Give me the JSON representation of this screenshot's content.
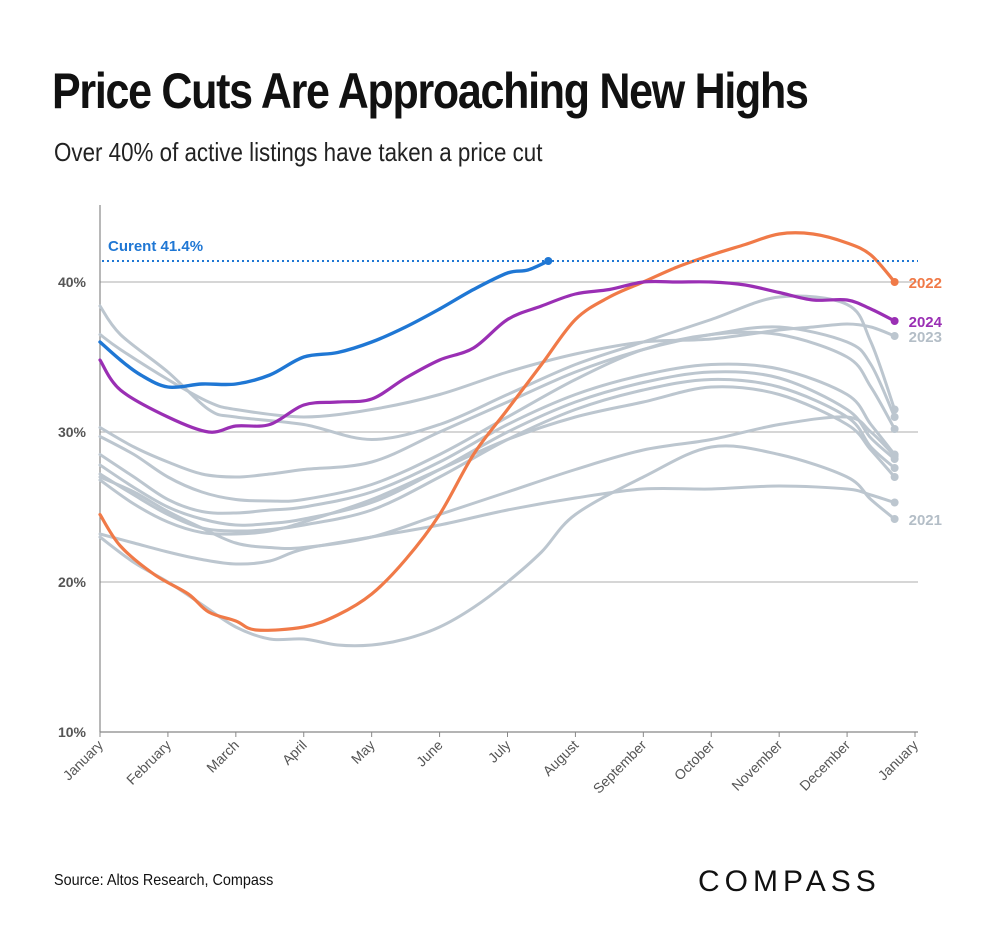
{
  "header": {
    "title": "Price Cuts Are Approaching New Highs",
    "subtitle": "Over 40% of active listings have taken a price cut"
  },
  "footer": {
    "source": "Source: Altos Research, Compass",
    "logo_text": "COMPASS"
  },
  "colors": {
    "current": "#1f77d4",
    "y2022": "#f07a48",
    "y2024": "#9a2fb4",
    "other": "#bcc6cf",
    "grid": "#bdbdbd"
  },
  "chart_data": {
    "type": "line",
    "title": "Price Cuts Are Approaching New Highs",
    "subtitle": "Over 40% of active listings have taken a price cut",
    "xlabel": "",
    "ylabel": "",
    "x_domain": [
      0,
      12
    ],
    "ylim": [
      10,
      45
    ],
    "y_ticks": [
      {
        "value": 10,
        "label": "10%"
      },
      {
        "value": 20,
        "label": "20%"
      },
      {
        "value": 30,
        "label": "30%"
      },
      {
        "value": 40,
        "label": "40%"
      }
    ],
    "x_ticks": [
      {
        "value": 0,
        "label": "January"
      },
      {
        "value": 1,
        "label": "February"
      },
      {
        "value": 2,
        "label": "March"
      },
      {
        "value": 3,
        "label": "April"
      },
      {
        "value": 4,
        "label": "May"
      },
      {
        "value": 5,
        "label": "June"
      },
      {
        "value": 6,
        "label": "July"
      },
      {
        "value": 7,
        "label": "August"
      },
      {
        "value": 8,
        "label": "September"
      },
      {
        "value": 9,
        "label": "October"
      },
      {
        "value": 10,
        "label": "November"
      },
      {
        "value": 11,
        "label": "December"
      },
      {
        "value": 12,
        "label": "January"
      }
    ],
    "reference_line": {
      "value": 41.4,
      "label": "Curent 41.4%"
    },
    "series": [
      {
        "name": "other-a",
        "label": "",
        "role": "other",
        "x": [
          0,
          0.3,
          1,
          1.6,
          2,
          3,
          4,
          5,
          6,
          7,
          8,
          9,
          10,
          11,
          11.35,
          11.7
        ],
        "y": [
          38.4,
          36.5,
          34,
          31.5,
          31,
          30.5,
          29.5,
          30.5,
          32.5,
          34.5,
          36,
          37.5,
          39,
          38.5,
          36,
          31.5
        ]
      },
      {
        "name": "other-b",
        "label": "",
        "role": "other",
        "x": [
          0,
          0.5,
          1,
          1.5,
          2,
          2.5,
          3,
          4,
          5,
          6,
          7,
          8,
          9,
          10,
          11,
          11.35,
          11.7
        ],
        "y": [
          30.3,
          29,
          28,
          27.2,
          27,
          27.2,
          27.5,
          28,
          30,
          32,
          34,
          35.5,
          36.5,
          37,
          36,
          34.5,
          31
        ]
      },
      {
        "name": "other-c",
        "label": "",
        "role": "other",
        "x": [
          0,
          0.5,
          1,
          1.5,
          2,
          2.5,
          3,
          4,
          5,
          6,
          7,
          8,
          9,
          10,
          11,
          11.35,
          11.7
        ],
        "y": [
          29.7,
          28.5,
          27,
          26,
          25.5,
          25.4,
          25.5,
          26.5,
          28.5,
          31,
          33.5,
          35.5,
          36.5,
          36.5,
          35,
          33,
          30.2
        ]
      },
      {
        "name": "other-d",
        "label": "",
        "role": "other",
        "x": [
          0,
          0.5,
          1,
          1.5,
          2,
          2.5,
          3,
          4,
          5,
          6,
          7,
          8,
          9,
          10,
          11,
          11.35,
          11.7
        ],
        "y": [
          28.5,
          27,
          25.5,
          24.7,
          24.6,
          24.8,
          25,
          26,
          28,
          30.5,
          32.5,
          33.8,
          34.5,
          34.2,
          32.5,
          30.5,
          28.5
        ]
      },
      {
        "name": "other-e",
        "label": "",
        "role": "other",
        "x": [
          0,
          0.5,
          1,
          1.5,
          2,
          2.5,
          3,
          4,
          5,
          6,
          7,
          8,
          9,
          10,
          11,
          11.35,
          11.7
        ],
        "y": [
          27.8,
          26.3,
          25,
          24.2,
          23.8,
          23.9,
          24.2,
          25.3,
          27.5,
          30,
          32,
          33.3,
          34,
          33.6,
          31.5,
          29.6,
          28.2
        ]
      },
      {
        "name": "other-f",
        "label": "",
        "role": "other",
        "x": [
          0,
          0.5,
          1,
          1.5,
          2,
          2.5,
          3,
          4,
          5,
          6,
          7,
          8,
          9,
          10,
          11,
          11.35,
          11.7
        ],
        "y": [
          27.2,
          25.8,
          24.5,
          23.6,
          23.4,
          23.5,
          23.8,
          24.8,
          27,
          29.5,
          31.5,
          32.8,
          33.5,
          33,
          31,
          29,
          27.6
        ]
      },
      {
        "name": "other-g",
        "label": "",
        "role": "other",
        "x": [
          0,
          0.5,
          1,
          1.5,
          2,
          2.5,
          3,
          4,
          5,
          6,
          7,
          8,
          9,
          10,
          11,
          11.35,
          11.7
        ],
        "y": [
          26.8,
          25.2,
          24,
          23.3,
          23.2,
          23.4,
          24,
          25.5,
          27.5,
          29.5,
          31,
          32,
          33,
          32.5,
          30.5,
          28.8,
          27
        ]
      },
      {
        "name": "other-h",
        "label": "",
        "role": "other",
        "x": [
          0,
          0.5,
          1,
          1.5,
          2,
          2.5,
          3,
          4,
          5,
          6,
          7,
          8,
          9,
          10,
          11,
          11.35,
          11.7
        ],
        "y": [
          27,
          26,
          24.7,
          23.6,
          22.6,
          22.3,
          22.3,
          23,
          24.5,
          26,
          27.5,
          28.8,
          29.5,
          30.5,
          31,
          30,
          28.4
        ]
      },
      {
        "name": "other-i",
        "label": "",
        "role": "other",
        "x": [
          0,
          0.5,
          1,
          1.5,
          2,
          2.5,
          3,
          4,
          5,
          6,
          7,
          8,
          9,
          10,
          11,
          11.35,
          11.7
        ],
        "y": [
          23.2,
          22.6,
          22,
          21.5,
          21.2,
          21.4,
          22.2,
          23,
          23.8,
          24.8,
          25.6,
          26.2,
          26.2,
          26.4,
          26.2,
          25.8,
          25.3
        ]
      },
      {
        "name": "2021",
        "label": "2021",
        "role": "other",
        "x": [
          0,
          0.5,
          1,
          1.5,
          2,
          2.5,
          3,
          3.5,
          4,
          4.5,
          5,
          5.5,
          6,
          6.5,
          7,
          8,
          9,
          10,
          11,
          11.35,
          11.7
        ],
        "y": [
          23,
          21.3,
          20,
          18.5,
          17,
          16.2,
          16.2,
          15.8,
          15.8,
          16.2,
          17,
          18.3,
          20,
          22,
          24.5,
          27,
          29,
          28.5,
          27,
          25.5,
          24.2
        ]
      },
      {
        "name": "2023",
        "label": "2023",
        "role": "y2023",
        "x": [
          0,
          0.3,
          1,
          1.6,
          2,
          3,
          4,
          5,
          6,
          7,
          8,
          9,
          10,
          10.5,
          11,
          11.35,
          11.7
        ],
        "y": [
          36.5,
          35.5,
          33.5,
          32,
          31.5,
          31,
          31.5,
          32.5,
          34,
          35.2,
          36,
          36.2,
          36.8,
          37,
          37.2,
          37,
          36.4
        ]
      },
      {
        "name": "2022",
        "label": "2022",
        "role": "y2022",
        "x": [
          0,
          0.3,
          0.8,
          1.3,
          1.6,
          2,
          2.3,
          3,
          3.5,
          4,
          4.5,
          5,
          5.5,
          6,
          6.5,
          7,
          7.5,
          8,
          8.5,
          9,
          9.5,
          10,
          10.5,
          11,
          11.35,
          11.7
        ],
        "y": [
          24.5,
          22.4,
          20.5,
          19.2,
          18,
          17.4,
          16.8,
          17,
          17.8,
          19.2,
          21.5,
          24.5,
          28.5,
          31.5,
          34.5,
          37.5,
          39,
          40,
          41,
          41.8,
          42.5,
          43.2,
          43.2,
          42.6,
          41.8,
          40
        ]
      },
      {
        "name": "2024",
        "label": "2024",
        "role": "y2024",
        "x": [
          0,
          0.3,
          1,
          1.6,
          2,
          2.5,
          3,
          3.5,
          4,
          4.5,
          5,
          5.5,
          6,
          6.5,
          7,
          7.5,
          8,
          8.5,
          9,
          9.5,
          10,
          10.5,
          11,
          11.35,
          11.7
        ],
        "y": [
          34.8,
          32.8,
          31,
          30,
          30.4,
          30.5,
          31.8,
          32,
          32.2,
          33.6,
          34.8,
          35.6,
          37.5,
          38.4,
          39.2,
          39.5,
          40,
          40,
          40,
          39.8,
          39.3,
          38.8,
          38.8,
          38.2,
          37.4
        ]
      },
      {
        "name": "Current",
        "label": "",
        "role": "current",
        "x": [
          0,
          0.3,
          0.6,
          1,
          1.5,
          2,
          2.5,
          3,
          3.5,
          4,
          4.5,
          5,
          5.5,
          6,
          6.3,
          6.6
        ],
        "y": [
          36,
          34.8,
          33.8,
          33,
          33.2,
          33.2,
          33.8,
          35,
          35.3,
          36,
          37,
          38.2,
          39.5,
          40.6,
          40.8,
          41.4
        ]
      }
    ]
  }
}
